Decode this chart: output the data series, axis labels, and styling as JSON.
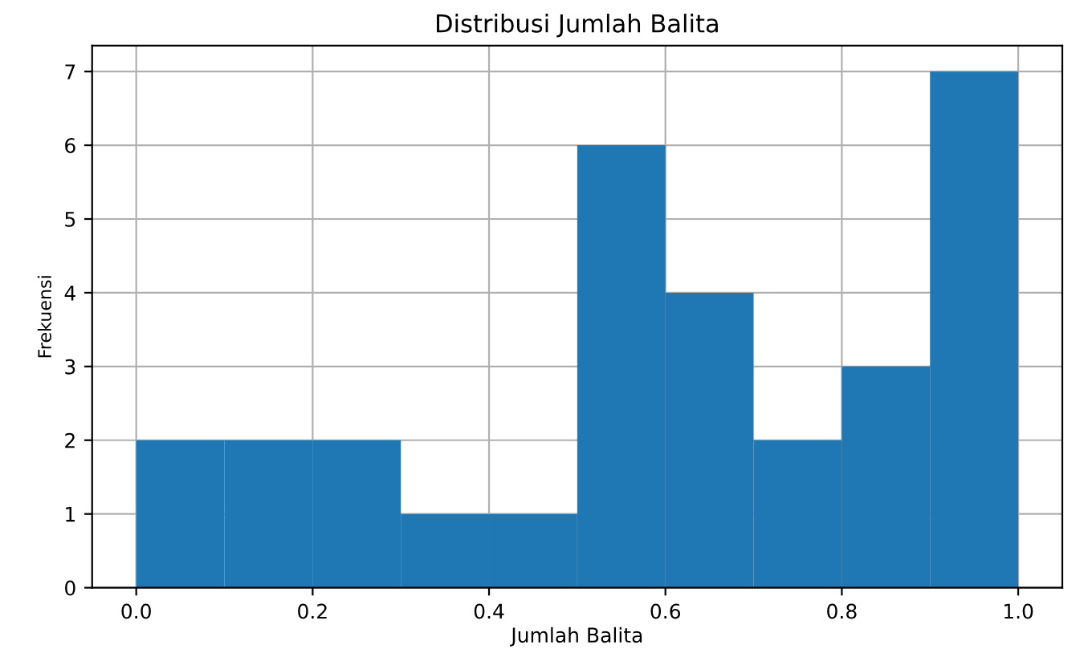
{
  "chart_data": {
    "type": "histogram",
    "title": "Distribusi Jumlah Balita",
    "xlabel": "Jumlah Balita",
    "ylabel": "Frekuensi",
    "bins": [
      0.0,
      0.1,
      0.2,
      0.3,
      0.4,
      0.5,
      0.6,
      0.7,
      0.8,
      0.9,
      1.0
    ],
    "values": [
      2,
      2,
      2,
      1,
      1,
      6,
      4,
      2,
      3,
      7
    ],
    "color": "#1f77b4",
    "xlim": [
      -0.05,
      1.05
    ],
    "ylim": [
      0,
      7.35
    ],
    "xticks": [
      {
        "value": 0.0,
        "label": "0.0"
      },
      {
        "value": 0.2,
        "label": "0.2"
      },
      {
        "value": 0.4,
        "label": "0.4"
      },
      {
        "value": 0.6,
        "label": "0.6"
      },
      {
        "value": 0.8,
        "label": "0.8"
      },
      {
        "value": 1.0,
        "label": "1.0"
      }
    ],
    "yticks": [
      0,
      1,
      2,
      3,
      4,
      5,
      6,
      7
    ],
    "grid": true
  }
}
